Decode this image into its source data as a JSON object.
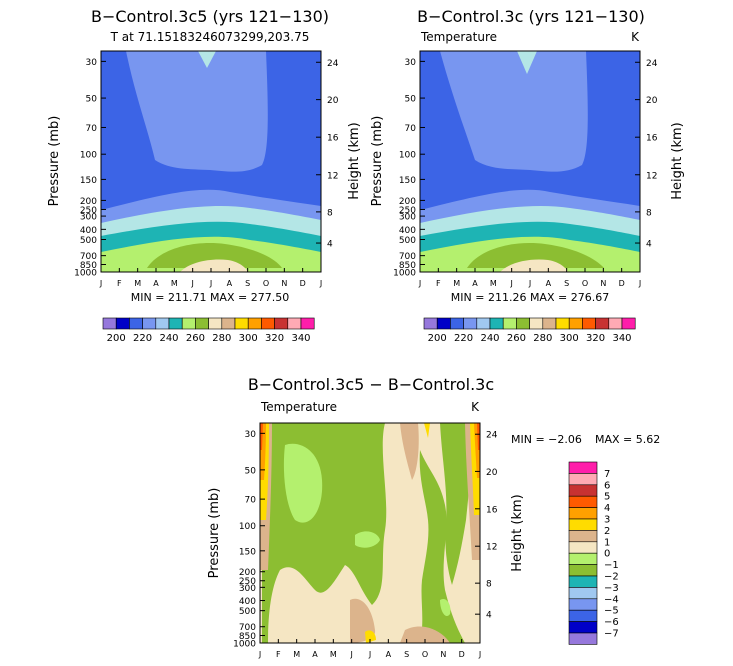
{
  "colors": {
    "navy": "#0000c8",
    "blue": "#3c64e6",
    "periwinkle": "#7896f0",
    "light_blue": "#a0c8f0",
    "pale_blue": "#b4e6e6",
    "teal": "#1eb4b4",
    "light_green": "#b4f06e",
    "green": "#8cbe32",
    "cream": "#f5e6c3",
    "tan": "#dcb48c",
    "yellow": "#ffdc00",
    "orange": "#ffa000",
    "red_orange": "#ff5a00",
    "dark_red": "#c83232",
    "pink": "#ffaab4",
    "magenta": "#ff1eaa",
    "purple": "#9678dc"
  },
  "chart_data": [
    {
      "type": "contour",
      "title": "B−Control.3c5 (yrs 121−130)",
      "subtitle_left": "T at 71.15183246073299,203.75",
      "subtitle_right": "",
      "xlabel": "",
      "ylabel": "Pressure (mb)",
      "ylabel_right": "Height (km)",
      "x_ticks": [
        "J",
        "F",
        "M",
        "A",
        "M",
        "J",
        "J",
        "A",
        "S",
        "O",
        "N",
        "D",
        "J"
      ],
      "y_ticks": [
        "30",
        "50",
        "70",
        "100",
        "150",
        "200",
        "250",
        "300",
        "400",
        "500",
        "700",
        "850",
        "1000"
      ],
      "y_ticks_right": [
        "24",
        "20",
        "16",
        "12",
        "8",
        "4"
      ],
      "stats": "MIN = 211.71  MAX = 277.50",
      "min": 211.71,
      "max": 277.5
    },
    {
      "type": "contour",
      "title": "B−Control.3c (yrs 121−130)",
      "subtitle_left": "Temperature",
      "subtitle_right": "K",
      "xlabel": "",
      "ylabel": "Pressure (mb)",
      "ylabel_right": "Height (km)",
      "x_ticks": [
        "J",
        "F",
        "M",
        "A",
        "M",
        "J",
        "J",
        "A",
        "S",
        "O",
        "N",
        "D",
        "J"
      ],
      "y_ticks": [
        "30",
        "50",
        "70",
        "100",
        "150",
        "200",
        "250",
        "300",
        "400",
        "500",
        "700",
        "850",
        "1000"
      ],
      "y_ticks_right": [
        "24",
        "20",
        "16",
        "12",
        "8",
        "4"
      ],
      "stats": "MIN = 211.26  MAX = 276.67",
      "min": 211.26,
      "max": 276.67
    },
    {
      "type": "contour",
      "title": "B−Control.3c5 − B−Control.3c",
      "subtitle_left": "Temperature",
      "subtitle_right": "K",
      "xlabel": "",
      "ylabel": "Pressure (mb)",
      "ylabel_right": "Height (km)",
      "x_ticks": [
        "J",
        "F",
        "M",
        "A",
        "M",
        "J",
        "J",
        "A",
        "S",
        "O",
        "N",
        "D",
        "J"
      ],
      "y_ticks": [
        "30",
        "50",
        "70",
        "100",
        "150",
        "200",
        "250",
        "300",
        "400",
        "500",
        "700",
        "850",
        "1000"
      ],
      "y_ticks_right": [
        "24",
        "20",
        "16",
        "12",
        "8",
        "4"
      ],
      "stats_min": "MIN =   −2.06",
      "stats_max": "MAX =    5.62",
      "min": -2.06,
      "max": 5.62
    }
  ],
  "colorbar_abs": {
    "labels": [
      "200",
      "220",
      "240",
      "260",
      "280",
      "300",
      "320",
      "340"
    ]
  },
  "colorbar_diff": {
    "labels": [
      "7",
      "6",
      "5",
      "4",
      "3",
      "2",
      "1",
      "0",
      "−1",
      "−2",
      "−3",
      "−4",
      "−5",
      "−6",
      "−7"
    ]
  }
}
